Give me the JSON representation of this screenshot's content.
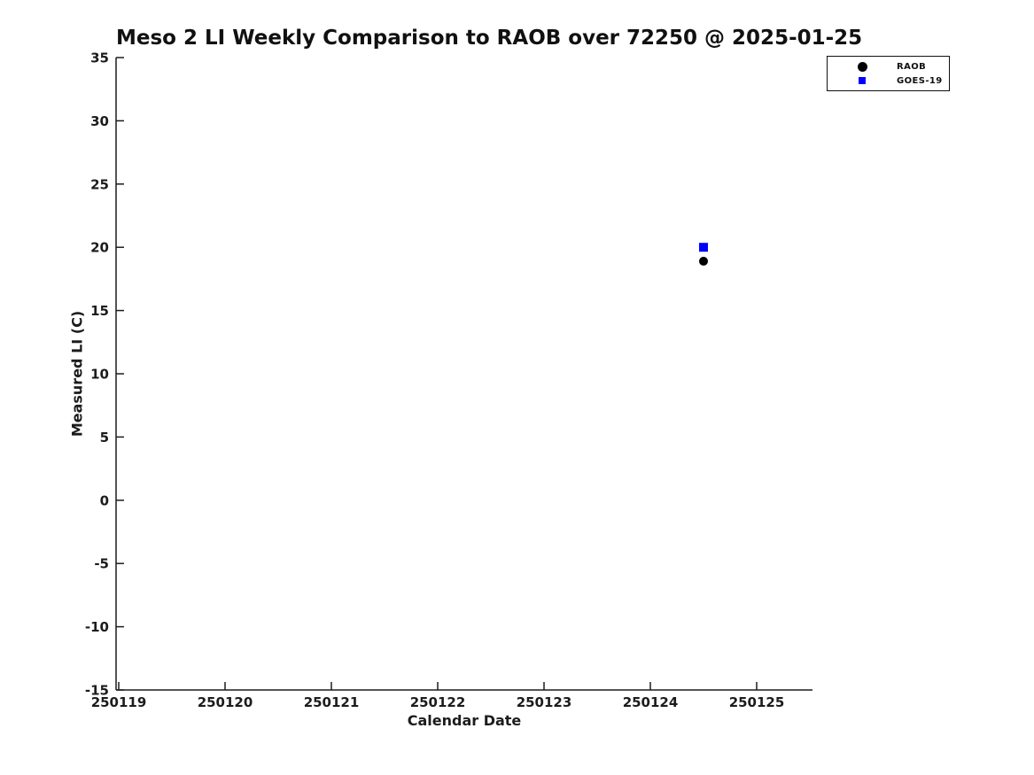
{
  "figure": {
    "title": "Meso 2 LI Weekly Comparison to RAOB over 72250 @ 2025-01-25",
    "background_color": "#ffffff",
    "axis_color": "#1c1c1c"
  },
  "legend": {
    "position": "top-right",
    "entries": [
      {
        "label": "RAOB",
        "marker": "circle",
        "color": "#000000"
      },
      {
        "label": "GOES-19",
        "marker": "square",
        "color": "#0000ff"
      }
    ]
  },
  "chart_data": {
    "type": "scatter",
    "title": "Meso 2 LI Weekly Comparison to RAOB over 72250 @ 2025-01-25",
    "xlabel": "Calendar Date",
    "ylabel": "Measured LI (C)",
    "xlim": [
      250118.975,
      250125.525
    ],
    "ylim": [
      -15,
      35
    ],
    "x_ticks": [
      250119,
      250120,
      250121,
      250122,
      250123,
      250124,
      250125
    ],
    "y_ticks": [
      -15,
      -10,
      -5,
      0,
      5,
      10,
      15,
      20,
      25,
      30,
      35
    ],
    "grid": false,
    "legend_position": "top-right",
    "series": [
      {
        "name": "RAOB",
        "marker": "circle",
        "color": "#000000",
        "points": [
          {
            "x": 250124.5,
            "y": 18.9
          }
        ]
      },
      {
        "name": "GOES-19",
        "marker": "square",
        "color": "#0000ff",
        "points": [
          {
            "x": 250124.5,
            "y": 20.0
          }
        ]
      }
    ]
  }
}
